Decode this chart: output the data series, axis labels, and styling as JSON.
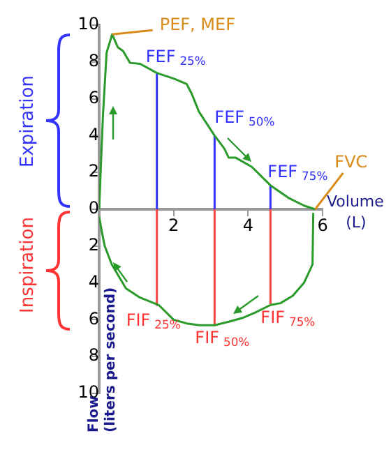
{
  "chart_data": {
    "type": "line",
    "xlabel": "Volume\n(L)",
    "ylabel": "Flow\n(liters per second)",
    "xlim": [
      0,
      6
    ],
    "xticks": [
      2,
      4,
      6
    ],
    "ylim": [
      -10,
      10
    ],
    "yticks": [
      {
        "value": -10,
        "label": "10"
      },
      {
        "value": -8,
        "label": "8"
      },
      {
        "value": -6,
        "label": "6"
      },
      {
        "value": -4,
        "label": "4"
      },
      {
        "value": -2,
        "label": "2"
      },
      0,
      2,
      4,
      6,
      8,
      10
    ],
    "grid": false,
    "legend": false,
    "marker": "none",
    "line_style": "solid",
    "series": [
      {
        "color": "#2a9a2a",
        "x": [
          0,
          0.1,
          0.2,
          0.35,
          0.5,
          0.64,
          0.83,
          1.1,
          1.55,
          2.0,
          2.35,
          2.48,
          2.68,
          3.1,
          3.36,
          3.48,
          3.67,
          4.1,
          4.6,
          5.1,
          5.5,
          5.8
        ],
        "values": [
          0,
          5,
          8.5,
          9.5,
          8.8,
          8.6,
          7.95,
          7.9,
          7.4,
          7.1,
          6.8,
          6.3,
          5.3,
          4.0,
          3.3,
          2.8,
          2.8,
          2.3,
          1.3,
          0.6,
          0.2,
          0
        ]
      },
      {
        "color": "#2a9a2a",
        "x": [
          0,
          0.08,
          0.15,
          0.34,
          0.72,
          1.1,
          1.6,
          2.0,
          2.35,
          2.7,
          3.1,
          3.5,
          3.85,
          4.2,
          4.6,
          4.87,
          5.2,
          5.5,
          5.73,
          5.75
        ],
        "values": [
          -0.4,
          -1.3,
          -2.0,
          -3.0,
          -4.3,
          -4.8,
          -5.2,
          -6.0,
          -6.2,
          -6.3,
          -6.3,
          -6.1,
          -5.9,
          -5.6,
          -5.2,
          -5.1,
          -4.7,
          -4.0,
          -3.0,
          -0.2
        ]
      },
      {
        "color": "#3333ff",
        "x": [
          1.55,
          1.55
        ],
        "values": [
          0,
          7.4
        ]
      },
      {
        "color": "#3333ff",
        "x": [
          3.1,
          3.1
        ],
        "values": [
          0,
          4.0
        ]
      },
      {
        "color": "#3333ff",
        "x": [
          4.6,
          4.6
        ],
        "values": [
          0,
          1.3
        ]
      },
      {
        "color": "#ff4444",
        "x": [
          1.55,
          1.55
        ],
        "values": [
          0,
          -5.2
        ]
      },
      {
        "color": "#ff4444",
        "x": [
          3.1,
          3.1
        ],
        "values": [
          0,
          -6.3
        ]
      },
      {
        "color": "#ff4444",
        "x": [
          4.6,
          4.6
        ],
        "values": [
          0,
          -5.2
        ]
      }
    ],
    "annotations": [
      {
        "text": "PEF, MEF",
        "x": 0.35,
        "y": 9.5
      },
      {
        "text": "FVC",
        "x": 5.8,
        "y": 0
      },
      {
        "text": "FEF$_{25%}$",
        "x": 1.55,
        "y": 7.4
      },
      {
        "text": "FEF$_{50%}$",
        "x": 3.1,
        "y": 4.0
      },
      {
        "text": "FEF$_{75%}$",
        "x": 4.6,
        "y": 1.3
      },
      {
        "text": "FIF$_{25%}$",
        "x": 1.55,
        "y": -5.2
      },
      {
        "text": "FIF$_{50%}$",
        "x": 3.1,
        "y": -6.3
      },
      {
        "text": "FIF$_{75%}$",
        "x": 4.6,
        "y": -5.2
      },
      "Expiration",
      "Inspiration"
    ]
  }
}
